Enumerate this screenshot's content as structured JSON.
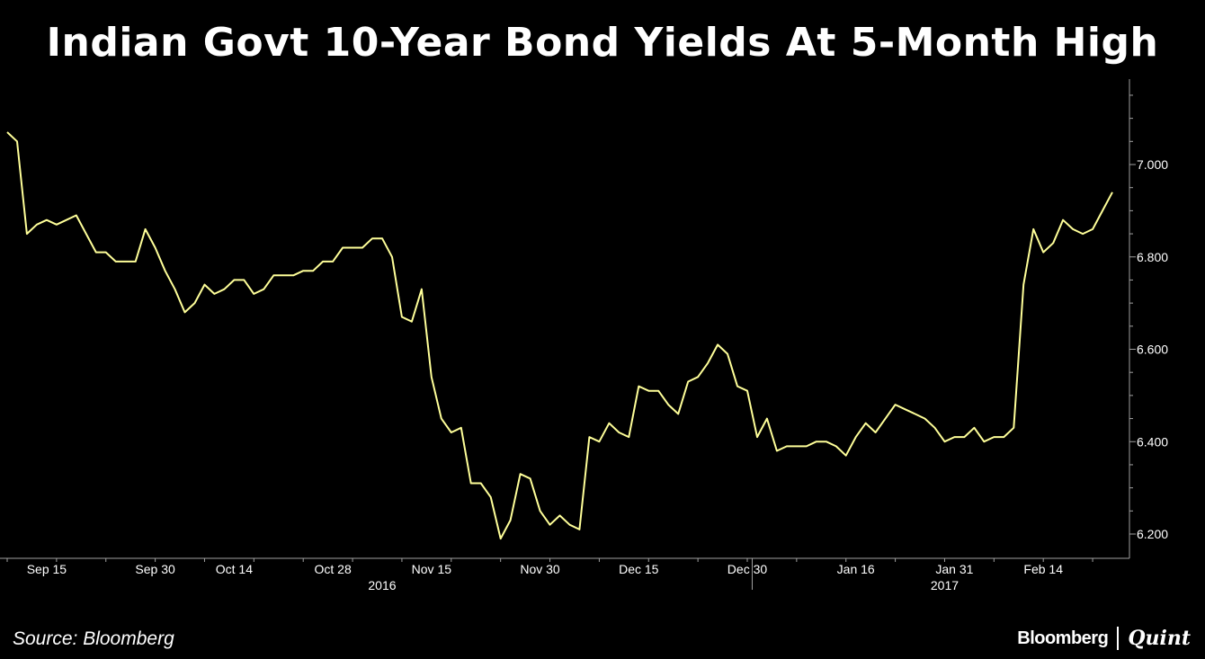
{
  "title": "Indian Govt 10-Year Bond Yields At 5-Month High",
  "source": "Source: Bloomberg",
  "brand": {
    "left": "Bloomberg",
    "right": "Quint"
  },
  "colors": {
    "background": "#000000",
    "line": "#ffff99",
    "axis": "#a0a0a0",
    "text": "#ffffff"
  },
  "chart_data": {
    "type": "line",
    "title": "Indian Govt 10-Year Bond Yields At 5-Month High",
    "xlabel": "",
    "ylabel": "",
    "ylim": [
      6.17,
      7.18
    ],
    "y_ticks": [
      "6.200",
      "6.400",
      "6.600",
      "6.800",
      "7.000"
    ],
    "y_tick_values": [
      6.2,
      6.4,
      6.6,
      6.8,
      7.0
    ],
    "x_ticks": [
      {
        "label": "Sep 15",
        "index": 4
      },
      {
        "label": "Sep 30",
        "index": 15
      },
      {
        "label": "Oct 14",
        "index": 23
      },
      {
        "label": "Oct 28",
        "index": 33
      },
      {
        "label": "Nov 15",
        "index": 43
      },
      {
        "label": "Nov 30",
        "index": 54
      },
      {
        "label": "Dec 15",
        "index": 64
      },
      {
        "label": "Dec 30",
        "index": 75
      },
      {
        "label": "Jan 16",
        "index": 86
      },
      {
        "label": "Jan 31",
        "index": 96
      },
      {
        "label": "Feb 14",
        "index": 105
      }
    ],
    "year_labels": [
      {
        "label": "2016",
        "index": 38
      },
      {
        "label": "2017",
        "index": 95
      }
    ],
    "year_divider_index": 75.5,
    "series": [
      {
        "values": [
          7.07,
          7.05,
          6.85,
          6.87,
          6.88,
          6.87,
          6.88,
          6.89,
          6.85,
          6.81,
          6.81,
          6.79,
          6.79,
          6.79,
          6.86,
          6.82,
          6.77,
          6.73,
          6.68,
          6.7,
          6.74,
          6.72,
          6.73,
          6.75,
          6.75,
          6.72,
          6.73,
          6.76,
          6.76,
          6.76,
          6.77,
          6.77,
          6.79,
          6.79,
          6.82,
          6.82,
          6.82,
          6.84,
          6.84,
          6.8,
          6.67,
          6.66,
          6.73,
          6.54,
          6.45,
          6.42,
          6.43,
          6.31,
          6.31,
          6.28,
          6.19,
          6.23,
          6.33,
          6.32,
          6.25,
          6.22,
          6.24,
          6.22,
          6.21,
          6.41,
          6.4,
          6.44,
          6.42,
          6.41,
          6.52,
          6.51,
          6.51,
          6.48,
          6.46,
          6.53,
          6.54,
          6.57,
          6.61,
          6.59,
          6.52,
          6.51,
          6.41,
          6.45,
          6.38,
          6.39,
          6.39,
          6.39,
          6.4,
          6.4,
          6.39,
          6.37,
          6.41,
          6.44,
          6.42,
          6.45,
          6.48,
          6.47,
          6.46,
          6.45,
          6.43,
          6.4,
          6.41,
          6.41,
          6.43,
          6.4,
          6.41,
          6.41,
          6.43,
          6.74,
          6.86,
          6.81,
          6.83,
          6.88,
          6.86,
          6.85,
          6.86,
          6.9,
          6.94
        ]
      }
    ]
  }
}
